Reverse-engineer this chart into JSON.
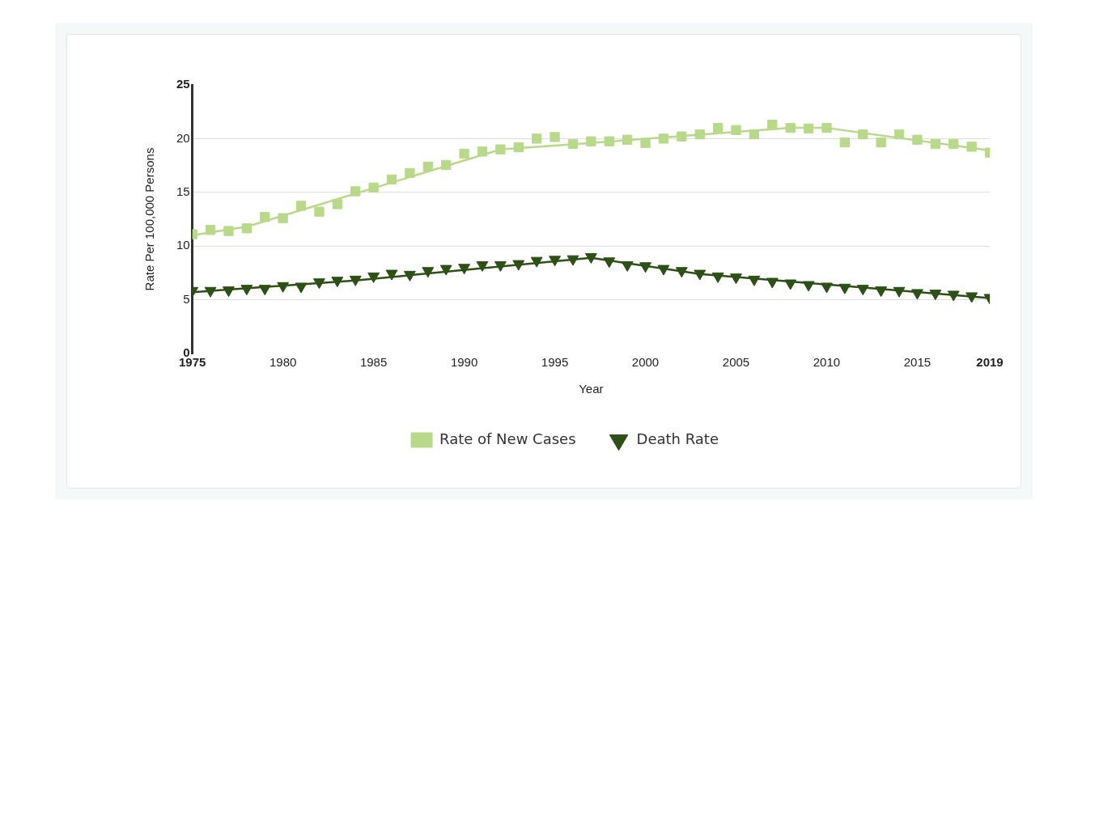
{
  "chart_data": {
    "type": "scatter",
    "xlabel": "Year",
    "ylabel": "Rate Per 100,000 Persons",
    "xlim": [
      1975,
      2019
    ],
    "xticks": [
      1975,
      1980,
      1985,
      1990,
      1995,
      2000,
      2005,
      2010,
      2015,
      2019
    ],
    "ylim": [
      0,
      25
    ],
    "yticks": [
      0,
      5,
      10,
      15,
      20,
      25
    ],
    "grid": "y",
    "legend": "bottom",
    "series": [
      {
        "name": "Rate of New Cases",
        "type": "scatter",
        "marker": "square",
        "color": "#b8d98a",
        "x": [
          1975,
          1976,
          1977,
          1978,
          1979,
          1980,
          1981,
          1982,
          1983,
          1984,
          1985,
          1986,
          1987,
          1988,
          1989,
          1990,
          1991,
          1992,
          1993,
          1994,
          1995,
          1996,
          1997,
          1998,
          1999,
          2000,
          2001,
          2002,
          2003,
          2004,
          2005,
          2006,
          2007,
          2008,
          2009,
          2010,
          2011,
          2012,
          2013,
          2014,
          2015,
          2016,
          2017,
          2018,
          2019
        ],
        "values": [
          11.1,
          11.5,
          11.4,
          11.65,
          12.7,
          12.6,
          13.75,
          13.2,
          13.9,
          15.1,
          15.45,
          16.2,
          16.8,
          17.4,
          17.55,
          18.6,
          18.8,
          19.0,
          19.2,
          20.0,
          20.15,
          19.5,
          19.75,
          19.75,
          19.9,
          19.6,
          20.0,
          20.2,
          20.4,
          21.0,
          20.8,
          20.4,
          21.3,
          21.0,
          20.95,
          21.0,
          19.65,
          20.4,
          19.65,
          20.4,
          19.9,
          19.5,
          19.5,
          19.25,
          18.7
        ]
      },
      {
        "name": "Death Rate",
        "type": "scatter",
        "marker": "triangle",
        "color": "#2d5016",
        "x": [
          1975,
          1976,
          1977,
          1978,
          1979,
          1980,
          1981,
          1982,
          1983,
          1984,
          1985,
          1986,
          1987,
          1988,
          1989,
          1990,
          1991,
          1992,
          1993,
          1994,
          1995,
          1996,
          1997,
          1998,
          1999,
          2000,
          2001,
          2002,
          2003,
          2004,
          2005,
          2006,
          2007,
          2008,
          2009,
          2010,
          2011,
          2012,
          2013,
          2014,
          2015,
          2016,
          2017,
          2018,
          2019
        ],
        "values": [
          5.85,
          5.85,
          5.9,
          6.05,
          6.05,
          6.3,
          6.25,
          6.65,
          6.8,
          6.9,
          7.2,
          7.45,
          7.35,
          7.7,
          7.9,
          8.0,
          8.25,
          8.25,
          8.35,
          8.65,
          8.75,
          8.8,
          9.0,
          8.6,
          8.25,
          8.15,
          7.9,
          7.7,
          7.45,
          7.2,
          7.1,
          6.9,
          6.7,
          6.55,
          6.4,
          6.25,
          6.15,
          6.05,
          5.9,
          5.85,
          5.65,
          5.6,
          5.5,
          5.35,
          5.2
        ]
      },
      {
        "type": "line",
        "marker": "none",
        "line_style": "solid",
        "color": "#b8d98a",
        "x": [
          1975,
          1978,
          1992,
          1997,
          2008,
          2010,
          2019
        ],
        "values": [
          11.0,
          11.8,
          19.0,
          19.6,
          21.0,
          21.0,
          18.9
        ]
      },
      {
        "type": "line",
        "marker": "none",
        "line_style": "solid",
        "color": "#2d5016",
        "x": [
          1975,
          1984,
          1997,
          2003,
          2019
        ],
        "values": [
          5.7,
          6.8,
          8.9,
          7.4,
          5.15
        ]
      }
    ]
  }
}
